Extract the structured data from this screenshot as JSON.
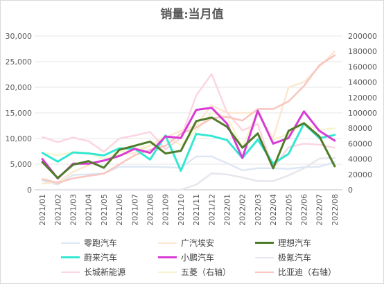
{
  "chart_data": {
    "type": "line",
    "title": "销量:当月值",
    "xlabel": "",
    "ylabel": "",
    "categories": [
      "2021/01",
      "2021/02",
      "2021/03",
      "2021/04",
      "2021/05",
      "2021/06",
      "2021/07",
      "2021/08",
      "2021/09",
      "2021/10",
      "2021/11",
      "2021/12",
      "2022/01",
      "2022/02",
      "2022/03",
      "2022/04",
      "2022/05",
      "2022/06",
      "2022/07",
      "2022/08"
    ],
    "ylim_left": [
      0,
      30000
    ],
    "yticks_left": [
      "0",
      "5,000",
      "10,000",
      "15,000",
      "20,000",
      "25,000",
      "30,000"
    ],
    "ylim_right": [
      0,
      200000
    ],
    "yticks_right": [
      "0",
      "20000",
      "40000",
      "60000",
      "80000",
      "100000",
      "120000",
      "140000",
      "160000",
      "180000",
      "200000"
    ],
    "grid": true,
    "legend_position": "bottom",
    "series": [
      {
        "name": "零跑汽车",
        "axis": "left",
        "color": "#dde7f4",
        "width": 2.5,
        "values": [
          1800,
          1000,
          2900,
          3000,
          3200,
          4500,
          4500,
          4500,
          4400,
          4300,
          6500,
          6500,
          5200,
          3800,
          4200,
          4200,
          4100,
          4400,
          4500,
          5400
        ]
      },
      {
        "name": "广汽埃安",
        "axis": "left",
        "color": "#fbe8d0",
        "width": 2.5,
        "values": [
          1200,
          1500,
          3500,
          4800,
          5700,
          6800,
          7200,
          8600,
          10200,
          11500,
          12600,
          16500,
          15000,
          15000,
          15000,
          10100,
          20000,
          21000,
          24000,
          27000
        ]
      },
      {
        "name": "理想汽车",
        "axis": "left",
        "color": "#4f7c2a",
        "width": 3,
        "values": [
          5400,
          2300,
          4900,
          5600,
          4300,
          7800,
          8600,
          9400,
          7100,
          7600,
          13400,
          14100,
          12300,
          8200,
          11000,
          4200,
          11500,
          13000,
          10400,
          4600
        ]
      },
      {
        "name": "蔚来汽车",
        "axis": "left",
        "color": "#33e8d3",
        "width": 3,
        "values": [
          7200,
          5500,
          7300,
          7100,
          6700,
          8100,
          8000,
          5900,
          10600,
          3700,
          10900,
          10500,
          9700,
          6200,
          9800,
          5100,
          7000,
          12900,
          10100,
          10700
        ]
      },
      {
        "name": "小鹏汽车",
        "axis": "left",
        "color": "#d83bd6",
        "width": 3,
        "values": [
          6000,
          2200,
          5100,
          5100,
          5700,
          6600,
          8000,
          7200,
          10400,
          10100,
          15600,
          16000,
          12900,
          6200,
          15400,
          9000,
          10100,
          15300,
          11500,
          9600
        ]
      },
      {
        "name": "极氪汽车",
        "axis": "left",
        "color": "#e6e6ed",
        "width": 2.5,
        "values": [
          0,
          0,
          0,
          0,
          0,
          0,
          0,
          0,
          0,
          0,
          1000,
          3200,
          3000,
          2400,
          1700,
          1700,
          2800,
          4200,
          6100,
          6200
        ]
      },
      {
        "name": "长城新能源",
        "axis": "left",
        "color": "#fbd6e0",
        "width": 2.5,
        "values": [
          10300,
          9300,
          10200,
          9500,
          7400,
          10000,
          10600,
          11300,
          7900,
          10100,
          18400,
          22600,
          15100,
          11600,
          12800,
          4200,
          8300,
          9000,
          8800,
          8200
        ]
      },
      {
        "name": "五菱（右轴）",
        "axis": "right",
        "color": "#f7f5cf",
        "width": 2.5,
        "values": [
          48000,
          45000,
          49000,
          48000,
          40000,
          49000,
          52000,
          58000,
          70000,
          58000,
          77000,
          100000,
          95000,
          55000,
          103000,
          65000,
          73000,
          86000,
          78000,
          80000
        ]
      },
      {
        "name": "比亚迪（右轴）",
        "axis": "right",
        "color": "#f8c5c0",
        "width": 2.5,
        "values": [
          14000,
          9000,
          15000,
          18000,
          21000,
          33000,
          45000,
          52000,
          57000,
          73000,
          81000,
          93000,
          95000,
          90000,
          105000,
          105000,
          115000,
          135000,
          162000,
          175000
        ]
      }
    ],
    "draw_order": [
      "零跑汽车",
      "广汽埃安",
      "极氪汽车",
      "五菱（右轴）",
      "长城新能源",
      "比亚迪（右轴）",
      "蔚来汽车",
      "小鹏汽车",
      "理想汽车"
    ]
  }
}
